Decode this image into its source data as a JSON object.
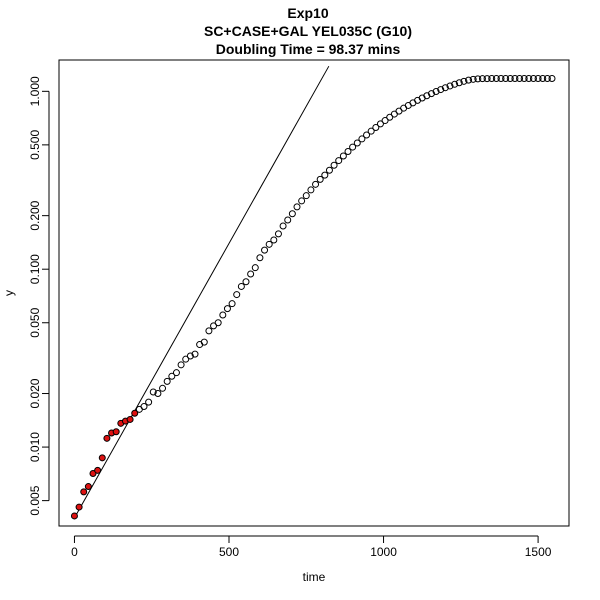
{
  "chart_data": {
    "type": "scatter",
    "title": "Exp10",
    "subtitle": "SC+CASE+GAL YEL035C (G10)",
    "subtitle2": "Doubling Time = 98.37 mins",
    "xlabel": "time",
    "ylabel": "y",
    "xlim": [
      -50,
      1600
    ],
    "ylim": [
      0.0036,
      1.5
    ],
    "y_scale": "log",
    "x_ticks": [
      0,
      500,
      1000,
      1500
    ],
    "y_ticks": [
      0.005,
      0.01,
      0.02,
      0.05,
      0.1,
      0.2,
      0.5,
      1.0
    ],
    "x_tick_labels": [
      "0",
      "500",
      "1000",
      "1500"
    ],
    "y_tick_labels": [
      "0.005",
      "0.010",
      "0.020",
      "0.050",
      "0.100",
      "0.200",
      "0.500",
      "1.000"
    ],
    "grid": false,
    "highlight_color": "#dd1111",
    "highlighted_points": {
      "x": [
        0,
        15,
        30,
        45,
        60,
        75,
        90,
        105,
        120,
        135,
        150,
        165,
        180,
        195
      ],
      "y": [
        0.0041,
        0.0046,
        0.0056,
        0.006,
        0.0071,
        0.0074,
        0.0087,
        0.0112,
        0.012,
        0.0122,
        0.0136,
        0.014,
        0.0143,
        0.0155
      ]
    },
    "points": {
      "x": [
        210,
        225,
        240,
        255,
        270,
        285,
        300,
        315,
        330,
        345,
        360,
        375,
        390,
        405,
        420,
        435,
        450,
        465,
        480,
        495,
        510,
        525,
        540,
        555,
        570,
        585,
        600,
        615,
        630,
        645,
        660,
        675,
        690,
        705,
        720,
        735,
        750,
        765,
        780,
        795,
        810,
        825,
        840,
        855,
        870,
        885,
        900,
        915,
        930,
        945,
        960,
        975,
        990,
        1005,
        1020,
        1035,
        1050,
        1065,
        1080,
        1095,
        1110,
        1125,
        1140,
        1155,
        1170,
        1185,
        1200,
        1215,
        1230,
        1245,
        1260,
        1275,
        1290,
        1305,
        1320,
        1335,
        1350,
        1365,
        1380,
        1395,
        1410,
        1425,
        1440,
        1455,
        1470,
        1485,
        1500,
        1515,
        1530,
        1545
      ],
      "y": [
        0.0163,
        0.0169,
        0.0179,
        0.0204,
        0.02,
        0.0214,
        0.0234,
        0.025,
        0.0262,
        0.029,
        0.0312,
        0.0325,
        0.0333,
        0.0377,
        0.0389,
        0.045,
        0.048,
        0.05,
        0.0553,
        0.06,
        0.064,
        0.072,
        0.08,
        0.085,
        0.094,
        0.102,
        0.116,
        0.128,
        0.138,
        0.146,
        0.158,
        0.175,
        0.189,
        0.205,
        0.224,
        0.242,
        0.259,
        0.279,
        0.3,
        0.32,
        0.338,
        0.36,
        0.384,
        0.408,
        0.433,
        0.459,
        0.486,
        0.512,
        0.54,
        0.568,
        0.597,
        0.626,
        0.656,
        0.685,
        0.715,
        0.745,
        0.774,
        0.804,
        0.833,
        0.861,
        0.889,
        0.917,
        0.944,
        0.971,
        0.998,
        1.023,
        1.048,
        1.072,
        1.095,
        1.117,
        1.138,
        1.156,
        1.168,
        1.175,
        1.178,
        1.179,
        1.18,
        1.18,
        1.18,
        1.18,
        1.18,
        1.18,
        1.18,
        1.18,
        1.18,
        1.18,
        1.18,
        1.18,
        1.18,
        1.18
      ]
    },
    "fit_line": {
      "x": [
        0,
        823
      ],
      "y": [
        0.004,
        1.3845
      ]
    }
  }
}
